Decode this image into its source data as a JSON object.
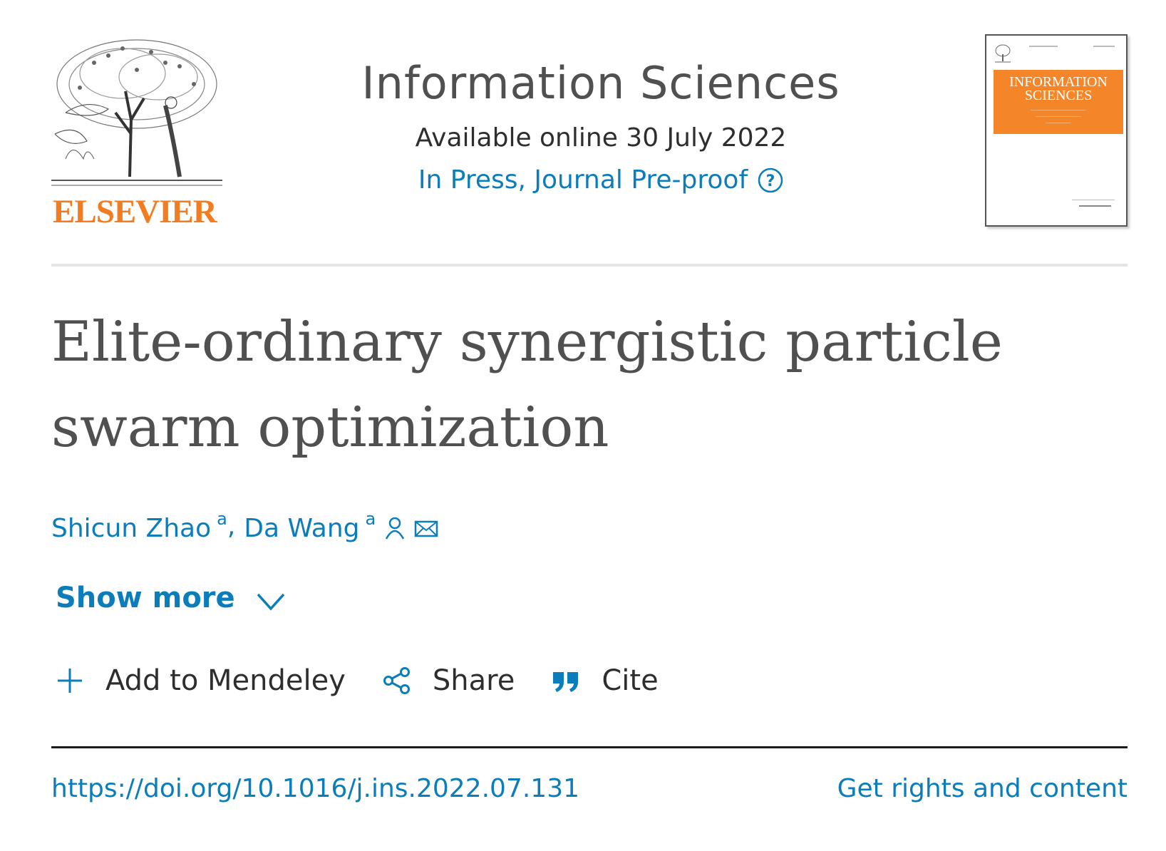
{
  "publisher": {
    "name": "ELSEVIER",
    "brand_color": "#f47c20"
  },
  "journal": {
    "title": "Information Sciences",
    "available_online": "Available online 30 July 2022",
    "status": "In Press, Journal Pre-proof",
    "cover": {
      "title": "INFORMATION SCIENCES",
      "band_color": "#f58529"
    }
  },
  "article": {
    "title": "Elite-ordinary synergistic particle swarm optimization",
    "authors": [
      {
        "name": "Shicun Zhao",
        "affiliation": "a"
      },
      {
        "name": "Da Wang",
        "affiliation": "a"
      }
    ],
    "show_more": "Show more",
    "doi": "https://doi.org/10.1016/j.ins.2022.07.131",
    "rights": "Get rights and content"
  },
  "actions": {
    "mendeley": "Add to Mendeley",
    "share": "Share",
    "cite": "Cite"
  },
  "icons": {
    "help": "help-icon",
    "person": "person-icon",
    "mail": "mail-icon",
    "chevron": "chevron-down-icon",
    "plus": "plus-icon",
    "share": "share-icon",
    "quote": "quote-icon"
  },
  "colors": {
    "link": "#0c7dbb",
    "text": "#2e2e2e",
    "title": "#505050"
  }
}
